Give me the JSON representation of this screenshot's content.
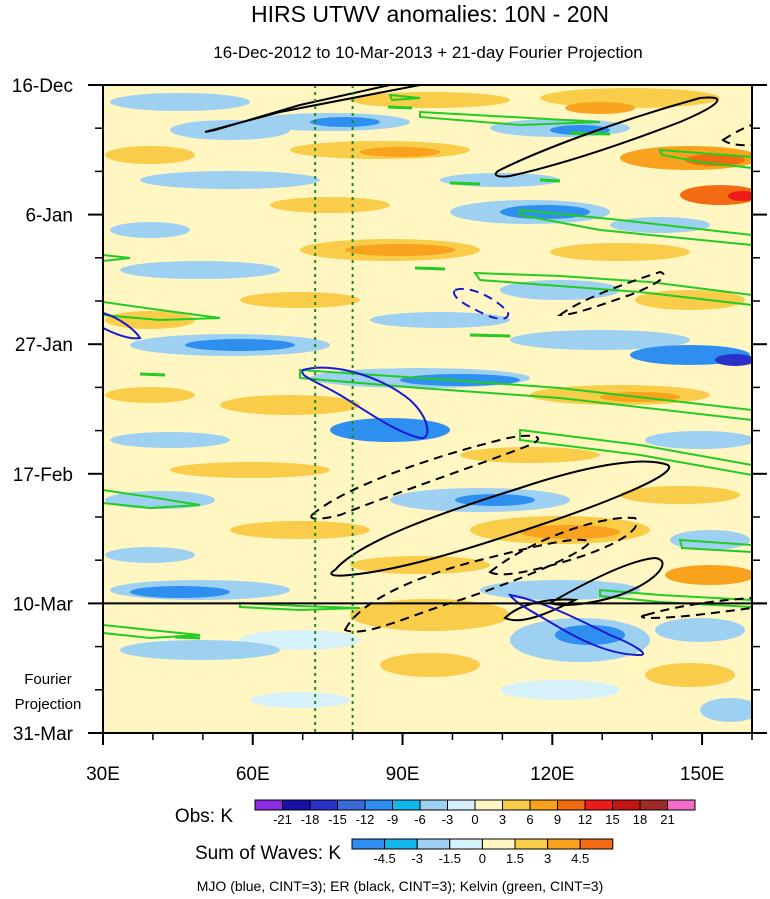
{
  "chart_data": {
    "type": "heatmap",
    "title": "HIRS UTWV anomalies: 10N - 20N",
    "subtitle": "16-Dec-2012 to 10-Mar-2013 + 21-day Fourier Projection",
    "x_axis": {
      "label": "",
      "range": [
        30,
        160
      ],
      "ticks": [
        30,
        60,
        90,
        120,
        150
      ],
      "tick_labels": [
        "30E",
        "60E",
        "90E",
        "120E",
        "150E"
      ]
    },
    "y_axis": {
      "label": "",
      "range_days_from_16Dec": [
        0,
        105
      ],
      "ticks": [
        0,
        21,
        42,
        63,
        84,
        105
      ],
      "tick_labels": [
        "16-Dec",
        "6-Jan",
        "27-Jan",
        "17-Feb",
        "10-Mar",
        "31-Mar"
      ],
      "direction": "time increases downward"
    },
    "projection": {
      "label_line1": "Fourier",
      "label_line2": "Projection",
      "start_day": 84,
      "end_day": 105
    },
    "reference_longitudes": [
      72.5,
      80
    ],
    "obs_colorbar": {
      "title": "Obs: K",
      "levels": [
        "-21",
        "-18",
        "-15",
        "-12",
        "-9",
        "-6",
        "-3",
        "0",
        "3",
        "6",
        "9",
        "12",
        "15",
        "18",
        "21"
      ],
      "colors": [
        "#8b2be2",
        "#1a0fa8",
        "#2a30c8",
        "#3a6ad8",
        "#2f8ff0",
        "#12b7ee",
        "#9ed0f2",
        "#d7f1fb",
        "#fff6c2",
        "#f9cd4a",
        "#f8a21d",
        "#f26b12",
        "#ee1b1b",
        "#c41414",
        "#a02a2a",
        "#f46bc8"
      ]
    },
    "waves_colorbar": {
      "title": "Sum of Waves: K",
      "levels": [
        "-4.5",
        "-3",
        "-1.5",
        "0",
        "1.5",
        "3",
        "4.5"
      ],
      "colors": [
        "#2f8ff0",
        "#12b7ee",
        "#9ed0f2",
        "#d7f1fb",
        "#fff6c2",
        "#f9cd4a",
        "#f8a21d",
        "#f26b12"
      ]
    },
    "contours": [
      {
        "name": "MJO",
        "color": "blue",
        "cint": 3
      },
      {
        "name": "ER",
        "color": "black",
        "cint": 3
      },
      {
        "name": "Kelvin",
        "color": "green",
        "cint": 3
      }
    ],
    "legend_text": "MJO (blue, CINT=3); ER (black, CINT=3); Kelvin (green, CINT=3)"
  }
}
